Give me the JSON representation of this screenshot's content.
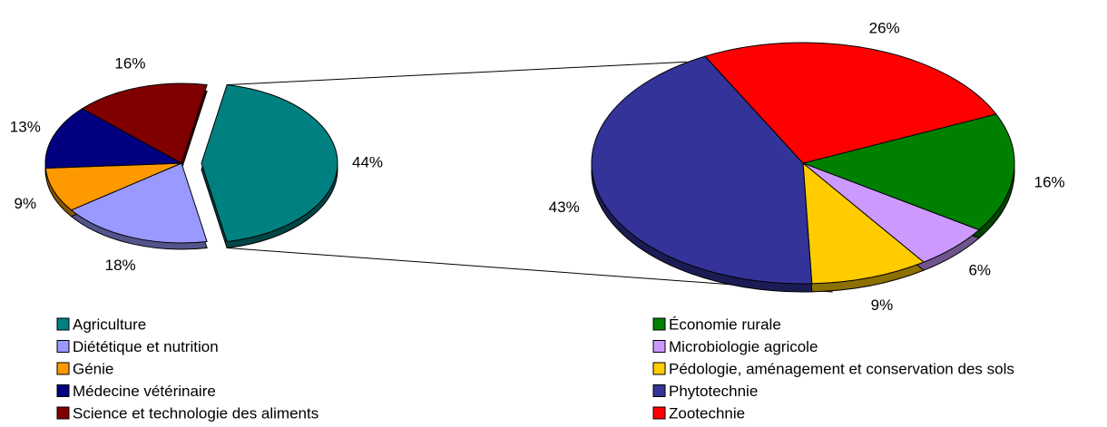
{
  "chart_data": [
    {
      "type": "pie",
      "categories": [
        "Agriculture",
        "Diététique et nutrition",
        "Génie",
        "Médecine vétérinaire",
        "Science et technologie des aliments"
      ],
      "values": [
        44,
        18,
        9,
        13,
        16
      ],
      "value_labels": [
        "44%",
        "18%",
        "9%",
        "13%",
        "16%"
      ],
      "colors": [
        "#008080",
        "#9999ff",
        "#ff9900",
        "#000080",
        "#800000"
      ]
    },
    {
      "type": "pie",
      "categories": [
        "Économie rurale",
        "Microbiologie agricole",
        "Pédologie, aménagement et conservation des sols",
        "Phytotechnie",
        "Zootechnie"
      ],
      "values": [
        16,
        6,
        9,
        43,
        26
      ],
      "value_labels": [
        "16%",
        "6%",
        "9%",
        "43%",
        "26%"
      ],
      "colors": [
        "#008000",
        "#cc99ff",
        "#ffcc00",
        "#333399",
        "#ff0000"
      ]
    }
  ]
}
